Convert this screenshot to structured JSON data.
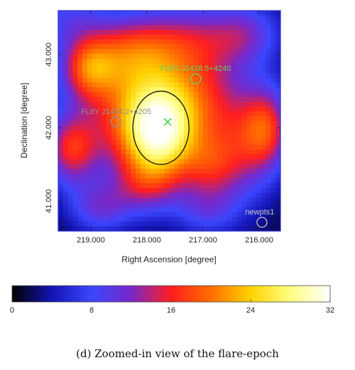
{
  "chart_data": {
    "type": "heatmap",
    "title": "",
    "xlabel": "Right Ascension [degree]",
    "ylabel": "Declination [degree]",
    "x_ticks": [
      {
        "value": 219.0,
        "label": "219.000"
      },
      {
        "value": 218.0,
        "label": "218.000"
      },
      {
        "value": 217.0,
        "label": "217.000"
      },
      {
        "value": 216.0,
        "label": "216.000"
      }
    ],
    "y_ticks": [
      {
        "value": 43.0,
        "label": "43.000"
      },
      {
        "value": 42.0,
        "label": "42.000"
      },
      {
        "value": 41.0,
        "label": "41.000"
      }
    ],
    "xlim": [
      219.58,
      215.62
    ],
    "ylim": [
      40.59,
      43.6
    ],
    "x_reversed": true,
    "colorbar": {
      "colormap": "heat (black-blue-red-yellow-white)",
      "range": [
        0,
        32
      ],
      "ticks": [
        {
          "value": 0,
          "label": "0"
        },
        {
          "value": 8,
          "label": "8"
        },
        {
          "value": 16,
          "label": "16"
        },
        {
          "value": 24,
          "label": "24"
        },
        {
          "value": 32,
          "label": "32"
        }
      ],
      "colors": [
        "#000000",
        "#1414b4",
        "#3c46ff",
        "#7828c8",
        "#ff1e1e",
        "#ff6e00",
        "#ffd200",
        "#ffff82",
        "#ffffff"
      ]
    },
    "sources": [
      {
        "name": "FL8Y J1428.5+4240",
        "ra": 217.13,
        "dec": 42.67,
        "marker": "circle",
        "color": "#5cd65c"
      },
      {
        "name": "FL8Y J1434.2+4205",
        "ra": 218.55,
        "dec": 42.08,
        "marker": "circle",
        "color": "#909090"
      },
      {
        "name": "newpts1",
        "ra": 215.95,
        "dec": 40.71,
        "marker": "circle",
        "color": "#c8c8c8"
      }
    ],
    "best_fit": {
      "ra": 217.63,
      "dec": 42.08,
      "marker": "x",
      "color": "#33cc33"
    },
    "containment_circle": {
      "ra": 217.75,
      "dec": 42.0,
      "radius_deg": 0.5,
      "color": "#000000"
    },
    "blobs": [
      {
        "ra": 217.8,
        "dec": 42.05,
        "sx": 0.55,
        "sy": 0.5,
        "amp": 20
      },
      {
        "ra": 217.75,
        "dec": 41.75,
        "sx": 0.45,
        "sy": 0.35,
        "amp": 6
      },
      {
        "ra": 218.4,
        "dec": 42.3,
        "sx": 0.7,
        "sy": 0.6,
        "amp": 9
      },
      {
        "ra": 217.0,
        "dec": 42.5,
        "sx": 0.6,
        "sy": 0.5,
        "amp": 9
      },
      {
        "ra": 218.3,
        "dec": 43.05,
        "sx": 0.6,
        "sy": 0.35,
        "amp": 10
      },
      {
        "ra": 217.2,
        "dec": 43.25,
        "sx": 0.7,
        "sy": 0.35,
        "amp": 8
      },
      {
        "ra": 219.05,
        "dec": 42.8,
        "sx": 0.35,
        "sy": 0.3,
        "amp": 12
      },
      {
        "ra": 219.35,
        "dec": 41.7,
        "sx": 0.35,
        "sy": 0.35,
        "amp": 13
      },
      {
        "ra": 219.45,
        "dec": 43.5,
        "sx": 0.5,
        "sy": 0.3,
        "amp": 6
      },
      {
        "ra": 218.85,
        "dec": 40.9,
        "sx": 0.4,
        "sy": 0.25,
        "amp": 8
      },
      {
        "ra": 218.0,
        "dec": 41.2,
        "sx": 0.45,
        "sy": 0.3,
        "amp": 8
      },
      {
        "ra": 216.9,
        "dec": 41.45,
        "sx": 0.35,
        "sy": 0.3,
        "amp": 7
      },
      {
        "ra": 216.35,
        "dec": 41.7,
        "sx": 0.45,
        "sy": 0.55,
        "amp": 10
      },
      {
        "ra": 215.85,
        "dec": 42.0,
        "sx": 0.3,
        "sy": 0.4,
        "amp": 12
      },
      {
        "ra": 216.2,
        "dec": 43.3,
        "sx": 0.45,
        "sy": 0.3,
        "amp": 7
      },
      {
        "ra": 216.95,
        "dec": 40.85,
        "sx": 0.4,
        "sy": 0.25,
        "amp": 6
      }
    ]
  },
  "caption": "(d) Zoomed-in view of the flare-epoch"
}
